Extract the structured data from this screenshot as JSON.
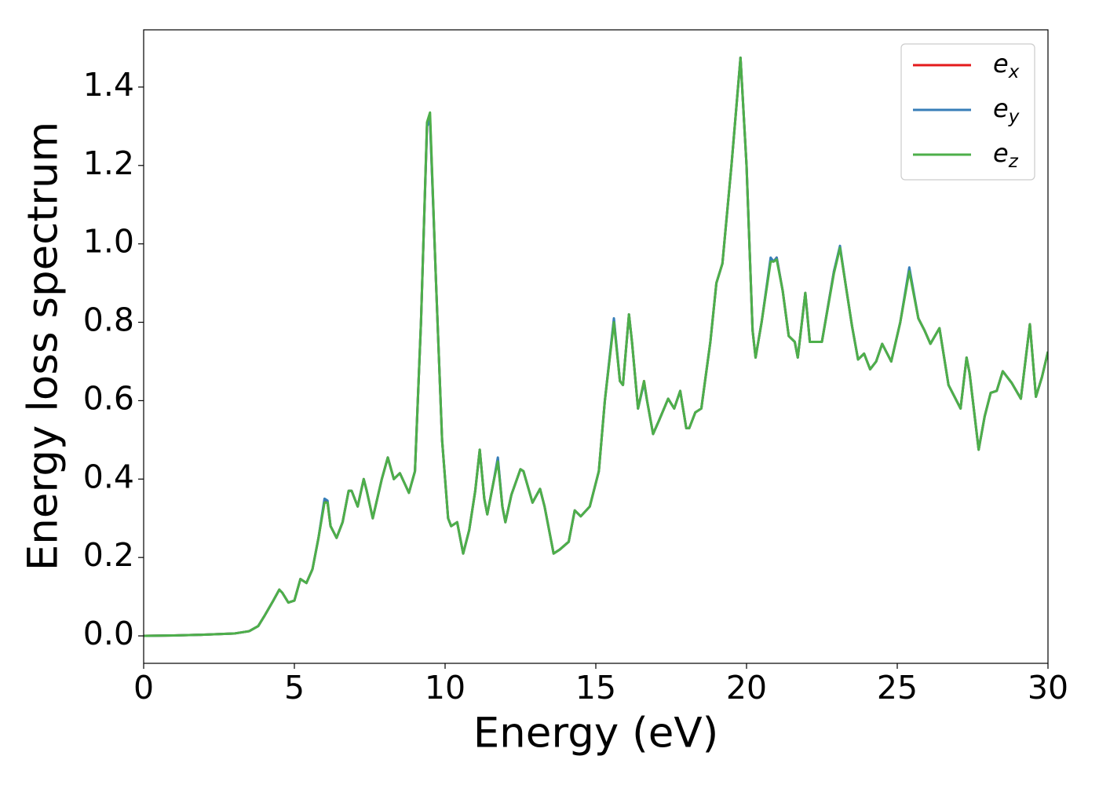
{
  "chart_data": {
    "type": "line",
    "xlabel": "Energy (eV)",
    "ylabel": "Energy loss spectrum",
    "x": [
      0,
      1,
      2,
      3,
      3.5,
      3.8,
      4.0,
      4.3,
      4.5,
      4.6,
      4.8,
      5.0,
      5.2,
      5.4,
      5.6,
      5.8,
      6.0,
      6.1,
      6.2,
      6.4,
      6.6,
      6.8,
      6.9,
      7.1,
      7.3,
      7.4,
      7.6,
      7.9,
      8.1,
      8.3,
      8.5,
      8.8,
      9.0,
      9.2,
      9.4,
      9.5,
      9.7,
      9.9,
      10.1,
      10.2,
      10.4,
      10.6,
      10.8,
      11.0,
      11.15,
      11.3,
      11.4,
      11.6,
      11.75,
      11.9,
      12.0,
      12.2,
      12.5,
      12.6,
      12.9,
      13.15,
      13.3,
      13.6,
      13.8,
      14.1,
      14.3,
      14.5,
      14.8,
      15.1,
      15.3,
      15.6,
      15.8,
      15.9,
      16.1,
      16.2,
      16.4,
      16.6,
      16.7,
      16.9,
      17.1,
      17.4,
      17.6,
      17.8,
      18.0,
      18.1,
      18.3,
      18.5,
      18.8,
      19.0,
      19.2,
      19.5,
      19.8,
      20.0,
      20.2,
      20.3,
      20.5,
      20.8,
      20.9,
      21.0,
      21.2,
      21.4,
      21.6,
      21.7,
      21.95,
      22.1,
      22.5,
      22.9,
      23.1,
      23.3,
      23.5,
      23.7,
      23.9,
      24.1,
      24.3,
      24.5,
      24.8,
      25.1,
      25.4,
      25.7,
      25.9,
      26.1,
      26.4,
      26.7,
      27.0,
      27.1,
      27.3,
      27.4,
      27.7,
      27.9,
      28.1,
      28.3,
      28.5,
      28.8,
      29.1,
      29.4,
      29.6,
      29.8,
      30
    ],
    "series": [
      {
        "name": "e_x",
        "color": "#e41a1c",
        "values": [
          0,
          0.001,
          0.003,
          0.006,
          0.012,
          0.025,
          0.05,
          0.09,
          0.118,
          0.11,
          0.085,
          0.09,
          0.145,
          0.135,
          0.17,
          0.25,
          0.345,
          0.34,
          0.28,
          0.25,
          0.29,
          0.37,
          0.37,
          0.33,
          0.4,
          0.37,
          0.3,
          0.4,
          0.455,
          0.4,
          0.415,
          0.365,
          0.42,
          0.8,
          1.3,
          1.32,
          0.9,
          0.5,
          0.3,
          0.28,
          0.29,
          0.21,
          0.27,
          0.37,
          0.475,
          0.35,
          0.31,
          0.39,
          0.45,
          0.33,
          0.29,
          0.36,
          0.425,
          0.42,
          0.34,
          0.375,
          0.33,
          0.21,
          0.22,
          0.24,
          0.32,
          0.305,
          0.33,
          0.42,
          0.6,
          0.805,
          0.65,
          0.64,
          0.82,
          0.75,
          0.58,
          0.65,
          0.6,
          0.515,
          0.55,
          0.605,
          0.58,
          0.625,
          0.53,
          0.53,
          0.57,
          0.58,
          0.75,
          0.9,
          0.95,
          1.2,
          1.475,
          1.2,
          0.78,
          0.71,
          0.8,
          0.96,
          0.955,
          0.965,
          0.88,
          0.765,
          0.75,
          0.71,
          0.875,
          0.75,
          0.75,
          0.93,
          0.99,
          0.89,
          0.79,
          0.705,
          0.72,
          0.68,
          0.7,
          0.745,
          0.7,
          0.8,
          0.935,
          0.81,
          0.78,
          0.745,
          0.785,
          0.64,
          0.595,
          0.58,
          0.71,
          0.67,
          0.475,
          0.56,
          0.62,
          0.625,
          0.675,
          0.645,
          0.605,
          0.795,
          0.61,
          0.66,
          0.725
        ]
      },
      {
        "name": "e_y",
        "color": "#377eb8",
        "values": [
          0,
          0.001,
          0.003,
          0.006,
          0.012,
          0.025,
          0.05,
          0.09,
          0.118,
          0.11,
          0.085,
          0.09,
          0.145,
          0.135,
          0.17,
          0.25,
          0.35,
          0.345,
          0.28,
          0.25,
          0.29,
          0.37,
          0.37,
          0.33,
          0.4,
          0.37,
          0.3,
          0.4,
          0.455,
          0.4,
          0.415,
          0.365,
          0.42,
          0.8,
          1.3,
          1.315,
          0.9,
          0.5,
          0.3,
          0.28,
          0.29,
          0.21,
          0.27,
          0.37,
          0.475,
          0.35,
          0.31,
          0.39,
          0.455,
          0.33,
          0.29,
          0.36,
          0.425,
          0.42,
          0.34,
          0.375,
          0.33,
          0.21,
          0.22,
          0.24,
          0.32,
          0.305,
          0.33,
          0.42,
          0.6,
          0.81,
          0.65,
          0.64,
          0.82,
          0.75,
          0.58,
          0.645,
          0.6,
          0.515,
          0.55,
          0.605,
          0.58,
          0.625,
          0.53,
          0.53,
          0.57,
          0.58,
          0.75,
          0.9,
          0.95,
          1.2,
          1.475,
          1.2,
          0.78,
          0.71,
          0.8,
          0.965,
          0.955,
          0.965,
          0.88,
          0.765,
          0.75,
          0.71,
          0.875,
          0.75,
          0.75,
          0.93,
          0.995,
          0.89,
          0.79,
          0.705,
          0.72,
          0.68,
          0.7,
          0.745,
          0.7,
          0.8,
          0.94,
          0.81,
          0.78,
          0.745,
          0.785,
          0.64,
          0.595,
          0.58,
          0.71,
          0.67,
          0.475,
          0.56,
          0.62,
          0.625,
          0.675,
          0.645,
          0.605,
          0.795,
          0.61,
          0.66,
          0.725
        ]
      },
      {
        "name": "e_z",
        "color": "#4daf4a",
        "values": [
          0,
          0.001,
          0.003,
          0.006,
          0.012,
          0.025,
          0.05,
          0.09,
          0.118,
          0.11,
          0.085,
          0.09,
          0.145,
          0.135,
          0.17,
          0.25,
          0.34,
          0.34,
          0.28,
          0.25,
          0.29,
          0.37,
          0.37,
          0.33,
          0.4,
          0.37,
          0.3,
          0.4,
          0.455,
          0.4,
          0.415,
          0.365,
          0.42,
          0.8,
          1.31,
          1.335,
          0.9,
          0.5,
          0.3,
          0.28,
          0.29,
          0.21,
          0.27,
          0.37,
          0.475,
          0.35,
          0.31,
          0.39,
          0.445,
          0.33,
          0.29,
          0.36,
          0.425,
          0.42,
          0.34,
          0.375,
          0.33,
          0.21,
          0.22,
          0.24,
          0.32,
          0.305,
          0.33,
          0.42,
          0.6,
          0.8,
          0.65,
          0.64,
          0.82,
          0.75,
          0.58,
          0.65,
          0.6,
          0.515,
          0.55,
          0.605,
          0.58,
          0.625,
          0.53,
          0.53,
          0.57,
          0.58,
          0.75,
          0.9,
          0.95,
          1.2,
          1.475,
          1.2,
          0.78,
          0.71,
          0.8,
          0.955,
          0.955,
          0.96,
          0.88,
          0.765,
          0.75,
          0.71,
          0.875,
          0.75,
          0.75,
          0.925,
          0.99,
          0.89,
          0.79,
          0.705,
          0.72,
          0.68,
          0.7,
          0.745,
          0.7,
          0.8,
          0.93,
          0.81,
          0.78,
          0.745,
          0.785,
          0.64,
          0.595,
          0.58,
          0.71,
          0.67,
          0.475,
          0.56,
          0.62,
          0.625,
          0.675,
          0.645,
          0.605,
          0.795,
          0.61,
          0.66,
          0.725
        ]
      }
    ],
    "xlim": [
      0,
      30
    ],
    "xticks": [
      0,
      5,
      10,
      15,
      20,
      25,
      30
    ],
    "ylim": [
      -0.07,
      1.546
    ],
    "yticks": [
      {
        "value": 0,
        "label": "0.0"
      },
      {
        "value": 0.2,
        "label": "0.2"
      },
      {
        "value": 0.4,
        "label": "0.4"
      },
      {
        "value": 0.6,
        "label": "0.6"
      },
      {
        "value": 0.8,
        "label": "0.8"
      },
      {
        "value": 1.0,
        "label": "1.0"
      },
      {
        "value": 1.2,
        "label": "1.2"
      },
      {
        "value": 1.4,
        "label": "1.4"
      }
    ],
    "legend": "upper right",
    "grid": false
  }
}
